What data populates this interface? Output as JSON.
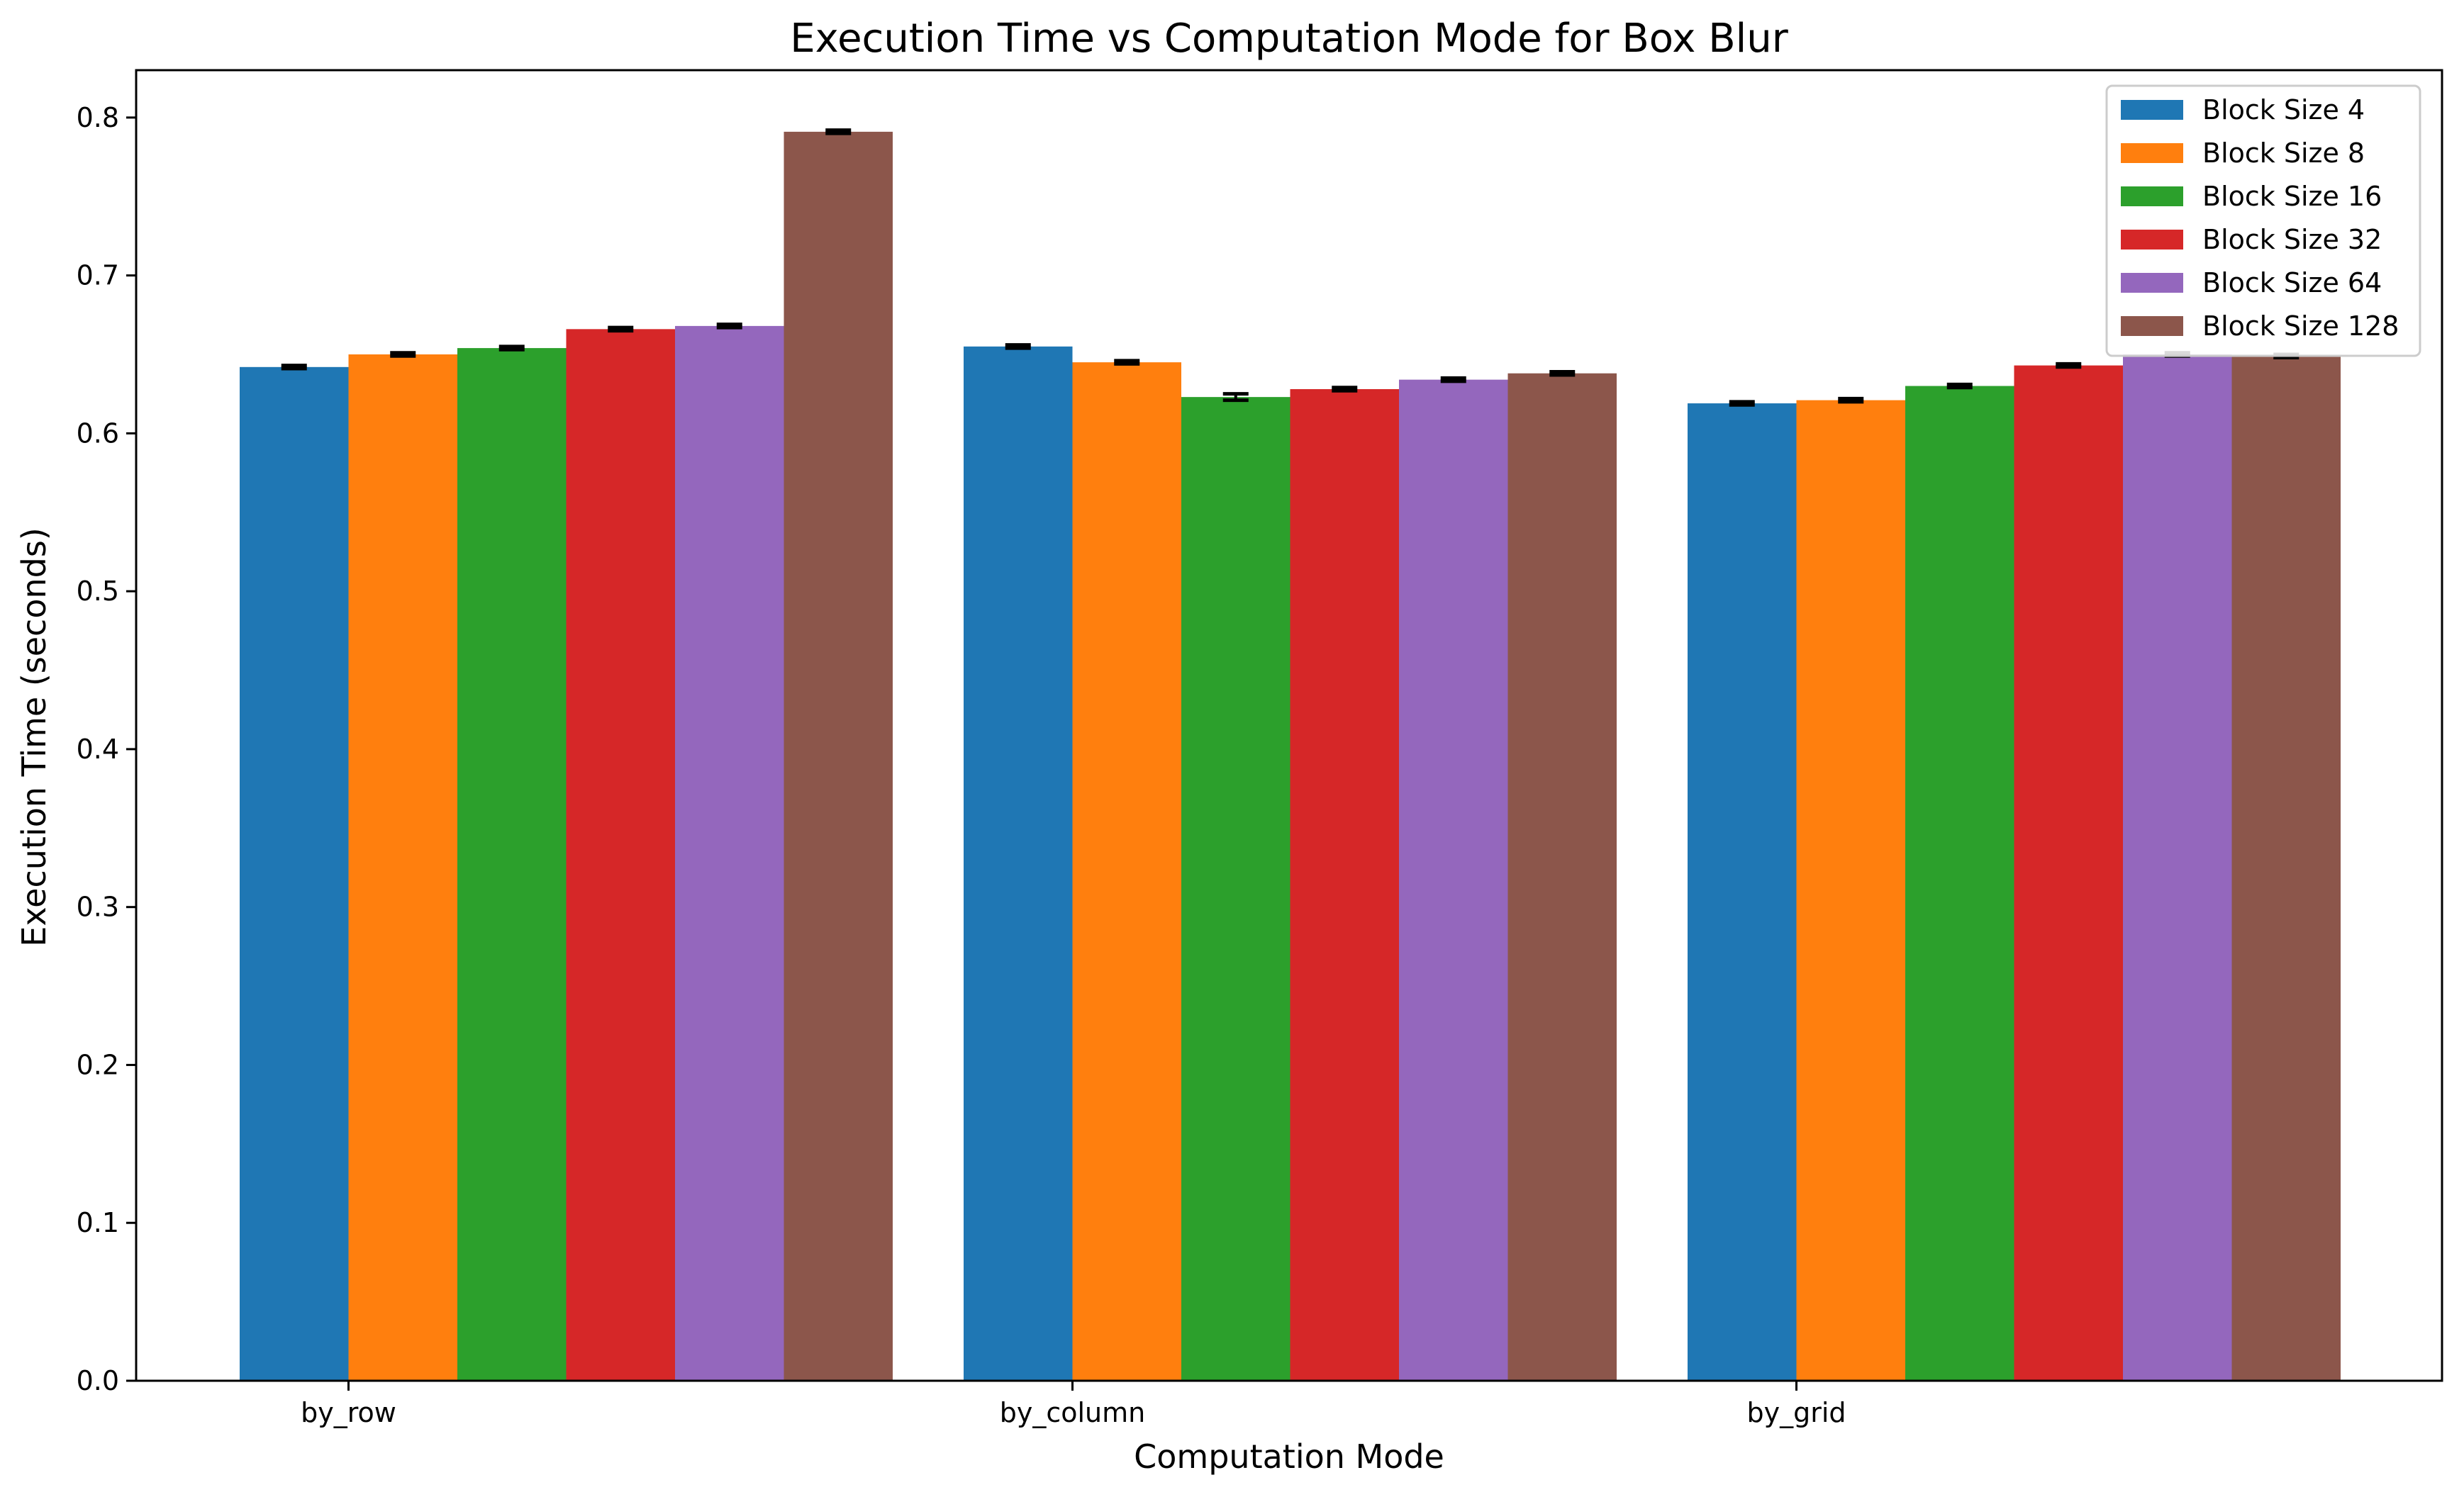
{
  "chart_data": {
    "type": "bar",
    "title": "Execution Time vs Computation Mode for Box Blur",
    "xlabel": "Computation Mode",
    "ylabel": "Execution Time (seconds)",
    "categories": [
      "by_row",
      "by_column",
      "by_grid"
    ],
    "ylim": [
      0,
      0.83
    ],
    "yticks": [
      0.0,
      0.1,
      0.2,
      0.3,
      0.4,
      0.5,
      0.6,
      0.7,
      0.8
    ],
    "ytick_labels": [
      "0.0",
      "0.1",
      "0.2",
      "0.3",
      "0.4",
      "0.5",
      "0.6",
      "0.7",
      "0.8"
    ],
    "grid": false,
    "legend_position": "top-right",
    "error_bars": true,
    "series": [
      {
        "name": "Block Size 4",
        "color": "#1f77b4",
        "values": [
          0.642,
          0.655,
          0.619
        ],
        "errors": [
          0.001,
          0.001,
          0.001
        ]
      },
      {
        "name": "Block Size 8",
        "color": "#ff7f0e",
        "values": [
          0.65,
          0.645,
          0.621
        ],
        "errors": [
          0.001,
          0.001,
          0.001
        ]
      },
      {
        "name": "Block Size 16",
        "color": "#2ca02c",
        "values": [
          0.654,
          0.623,
          0.63
        ],
        "errors": [
          0.001,
          0.002,
          0.001
        ]
      },
      {
        "name": "Block Size 32",
        "color": "#d62728",
        "values": [
          0.666,
          0.628,
          0.643
        ],
        "errors": [
          0.001,
          0.001,
          0.001
        ]
      },
      {
        "name": "Block Size 64",
        "color": "#9467bd",
        "values": [
          0.668,
          0.634,
          0.65
        ],
        "errors": [
          0.001,
          0.001,
          0.001
        ]
      },
      {
        "name": "Block Size 128",
        "color": "#8c564b",
        "values": [
          0.791,
          0.638,
          0.649
        ],
        "errors": [
          0.001,
          0.001,
          0.001
        ]
      }
    ]
  }
}
